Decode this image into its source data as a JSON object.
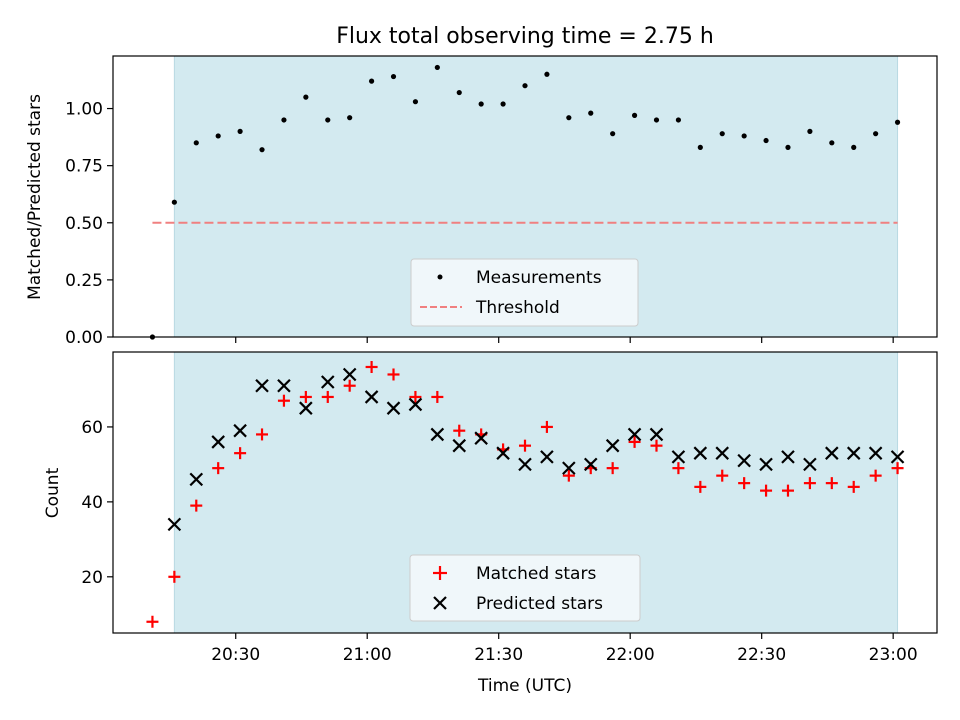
{
  "chart_data": [
    {
      "type": "scatter",
      "title": "Flux total observing time = 2.75 h",
      "xlabel": "",
      "ylabel": "Matched/Predicted stars",
      "ylim": [
        0,
        1.23
      ],
      "yticks": [
        "0.00",
        "0.25",
        "0.50",
        "0.75",
        "1.00"
      ],
      "ytick_values": [
        0,
        0.25,
        0.5,
        0.75,
        1.0
      ],
      "x_axis": "time",
      "shaded_interval": [
        "20:16",
        "23:01"
      ],
      "series": [
        {
          "name": "Measurements",
          "marker": "dot",
          "color": "#000000",
          "x": [
            "20:11",
            "20:16",
            "20:21",
            "20:26",
            "20:31",
            "20:36",
            "20:41",
            "20:46",
            "20:51",
            "20:56",
            "21:01",
            "21:06",
            "21:11",
            "21:16",
            "21:21",
            "21:26",
            "21:31",
            "21:36",
            "21:41",
            "21:46",
            "21:51",
            "21:56",
            "22:01",
            "22:06",
            "22:11",
            "22:16",
            "22:21",
            "22:26",
            "22:31",
            "22:36",
            "22:41",
            "22:46",
            "22:51",
            "22:56",
            "23:01"
          ],
          "y": [
            0.0,
            0.59,
            0.85,
            0.88,
            0.9,
            0.82,
            0.95,
            1.05,
            0.95,
            0.96,
            1.12,
            1.14,
            1.03,
            1.18,
            1.07,
            1.02,
            1.02,
            1.1,
            1.15,
            0.96,
            0.98,
            0.89,
            0.97,
            0.95,
            0.95,
            0.83,
            0.89,
            0.88,
            0.86,
            0.83,
            0.9,
            0.85,
            0.83,
            0.89,
            0.94
          ]
        },
        {
          "name": "Threshold",
          "marker": "dashed-line",
          "color": "#f08080",
          "x": [
            "20:11",
            "23:01"
          ],
          "y": [
            0.5,
            0.5
          ]
        }
      ],
      "legend": "lower-center"
    },
    {
      "type": "scatter",
      "xlabel": "Time (UTC)",
      "ylabel": "Count",
      "ylim": [
        5,
        80
      ],
      "yticks": [
        "20",
        "40",
        "60"
      ],
      "ytick_values": [
        20,
        40,
        60
      ],
      "xticks": [
        "20:30",
        "21:00",
        "21:30",
        "22:00",
        "22:30",
        "23:00"
      ],
      "x_axis": "time",
      "xlim": [
        "20:02",
        "23:10"
      ],
      "shaded_interval": [
        "20:16",
        "23:01"
      ],
      "series": [
        {
          "name": "Matched stars",
          "marker": "plus",
          "color": "#ff0000",
          "x": [
            "20:11",
            "20:16",
            "20:21",
            "20:26",
            "20:31",
            "20:36",
            "20:41",
            "20:46",
            "20:51",
            "20:56",
            "21:01",
            "21:06",
            "21:11",
            "21:16",
            "21:21",
            "21:26",
            "21:31",
            "21:36",
            "21:41",
            "21:46",
            "21:51",
            "21:56",
            "22:01",
            "22:06",
            "22:11",
            "22:16",
            "22:21",
            "22:26",
            "22:31",
            "22:36",
            "22:41",
            "22:46",
            "22:51",
            "22:56",
            "23:01"
          ],
          "y": [
            8,
            20,
            39,
            49,
            53,
            58,
            67,
            68,
            68,
            71,
            76,
            74,
            68,
            68,
            59,
            58,
            54,
            55,
            60,
            47,
            49,
            49,
            56,
            55,
            49,
            44,
            47,
            45,
            43,
            43,
            45,
            45,
            44,
            47,
            49
          ]
        },
        {
          "name": "Predicted stars",
          "marker": "x",
          "color": "#000000",
          "x": [
            "20:16",
            "20:21",
            "20:26",
            "20:31",
            "20:36",
            "20:41",
            "20:46",
            "20:51",
            "20:56",
            "21:01",
            "21:06",
            "21:11",
            "21:16",
            "21:21",
            "21:26",
            "21:31",
            "21:36",
            "21:41",
            "21:46",
            "21:51",
            "21:56",
            "22:01",
            "22:06",
            "22:11",
            "22:16",
            "22:21",
            "22:26",
            "22:31",
            "22:36",
            "22:41",
            "22:46",
            "22:51",
            "22:56",
            "23:01"
          ],
          "y": [
            34,
            46,
            56,
            59,
            71,
            71,
            65,
            72,
            74,
            68,
            65,
            66,
            58,
            55,
            57,
            53,
            50,
            52,
            49,
            50,
            55,
            58,
            58,
            52,
            53,
            53,
            51,
            50,
            52,
            50,
            53,
            53,
            53,
            52
          ]
        }
      ],
      "legend": "lower-center"
    }
  ],
  "colors": {
    "shade": "#d3eaf0",
    "shade_edge": "#b9d9e2",
    "threshold": "#f08080",
    "matched": "#ff0000",
    "predicted": "#000000"
  }
}
